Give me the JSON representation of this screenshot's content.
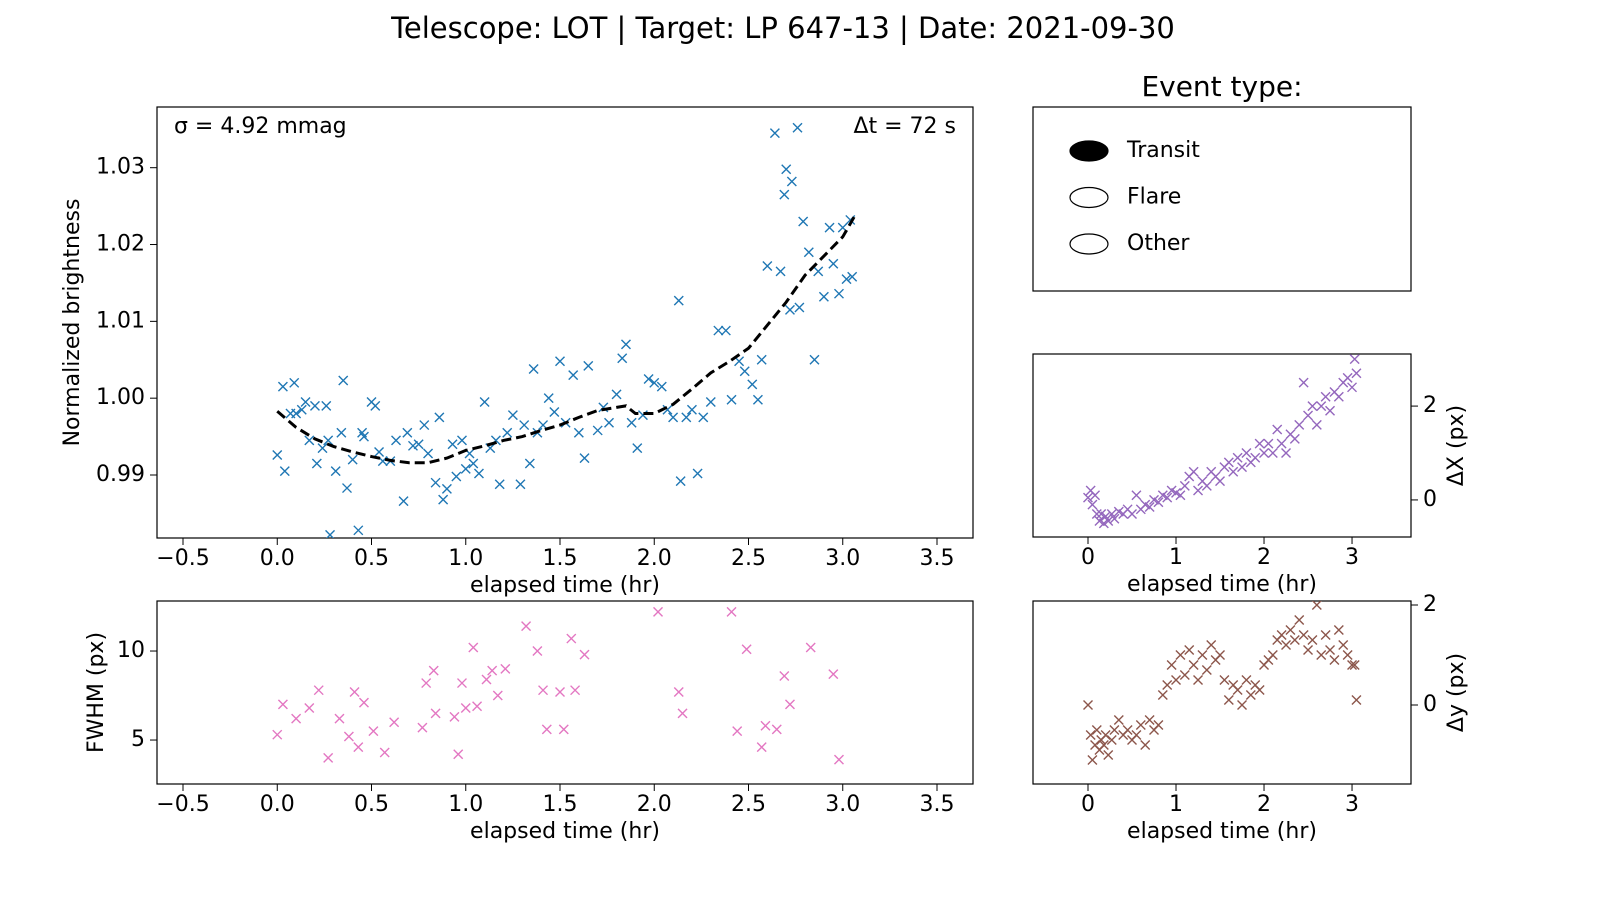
{
  "title": "Telescope: LOT  |  Target: LP 647-13  |  Date: 2021-09-30",
  "legend": {
    "title": "Event type:",
    "items": [
      "Transit",
      "Flare",
      "Other"
    ],
    "selected": 0
  },
  "chart_data": [
    {
      "type": "scatter",
      "xlabel": "elapsed time (hr)",
      "ylabel": "Normalized brightness",
      "yaxis_side": "left",
      "annotations": [
        {
          "text": "σ = 4.92 mmag",
          "corner": "upper left"
        },
        {
          "text": "Δt = 72 s",
          "corner": "upper right"
        }
      ],
      "xlim": [
        -0.638,
        3.691
      ],
      "ylim": [
        0.9818,
        1.0379
      ],
      "xticks": [
        {
          "value": -0.5,
          "label": "−0.5"
        },
        {
          "value": 0,
          "label": "0.0"
        },
        0.5,
        {
          "value": 1,
          "label": "1.0"
        },
        1.5,
        {
          "value": 2,
          "label": "2.0"
        },
        2.5,
        {
          "value": 3,
          "label": "3.0"
        },
        3.5
      ],
      "yticks": [
        0.99,
        {
          "value": 1,
          "label": "1.00"
        },
        1.01,
        1.02,
        1.03
      ],
      "series": [
        {
          "type": "scatter",
          "marker": "x",
          "color": "#1f77b4",
          "x": [
            0.0,
            0.03,
            0.04,
            0.07,
            0.09,
            0.1,
            0.13,
            0.15,
            0.17,
            0.2,
            0.21,
            0.24,
            0.26,
            0.27,
            0.28,
            0.31,
            0.34,
            0.35,
            0.37,
            0.4,
            0.43,
            0.45,
            0.46,
            0.5,
            0.52,
            0.54,
            0.56,
            0.6,
            0.63,
            0.67,
            0.69,
            0.72,
            0.75,
            0.78,
            0.8,
            0.84,
            0.86,
            0.88,
            0.9,
            0.93,
            0.95,
            0.98,
            1.0,
            1.02,
            1.04,
            1.07,
            1.1,
            1.13,
            1.16,
            1.18,
            1.22,
            1.25,
            1.29,
            1.31,
            1.34,
            1.36,
            1.38,
            1.41,
            1.44,
            1.47,
            1.5,
            1.53,
            1.57,
            1.6,
            1.63,
            1.65,
            1.7,
            1.73,
            1.76,
            1.8,
            1.83,
            1.85,
            1.88,
            1.91,
            1.94,
            1.97,
            2.0,
            2.04,
            2.07,
            2.1,
            2.13,
            2.14,
            2.17,
            2.2,
            2.23,
            2.26,
            2.3,
            2.34,
            2.38,
            2.41,
            2.45,
            2.48,
            2.52,
            2.55,
            2.57,
            2.6,
            2.64,
            2.67,
            2.69,
            2.7,
            2.72,
            2.73,
            2.76,
            2.77,
            2.79,
            2.82,
            2.85,
            2.87,
            2.9,
            2.93,
            2.95,
            2.98,
            3.0,
            3.02,
            3.04,
            3.05
          ],
          "values": [
            0.9926,
            1.0015,
            0.9905,
            0.998,
            1.002,
            0.998,
            0.9985,
            0.9995,
            0.9945,
            0.999,
            0.9915,
            0.9935,
            0.999,
            0.9945,
            0.9822,
            0.9905,
            0.9955,
            1.0023,
            0.9883,
            0.992,
            0.9828,
            0.9955,
            0.995,
            0.9995,
            0.999,
            0.993,
            0.9918,
            0.9918,
            0.9945,
            0.9866,
            0.9955,
            0.9938,
            0.994,
            0.9965,
            0.9928,
            0.989,
            0.9975,
            0.9868,
            0.9882,
            0.994,
            0.9898,
            0.9945,
            0.9908,
            0.9928,
            0.9915,
            0.9902,
            0.9995,
            0.9935,
            0.9945,
            0.9888,
            0.9955,
            0.9978,
            0.9888,
            0.9965,
            0.9915,
            1.0038,
            0.9955,
            0.9965,
            1.0,
            0.9982,
            1.0048,
            0.9968,
            1.003,
            0.9955,
            0.9922,
            1.0042,
            0.9958,
            0.9988,
            0.9968,
            1.0005,
            1.0052,
            1.007,
            0.9968,
            0.9935,
            0.9978,
            1.0025,
            1.002,
            1.0015,
            0.9985,
            0.9975,
            1.0127,
            0.9892,
            0.9975,
            0.9985,
            0.9902,
            0.9975,
            0.9995,
            1.0088,
            1.0088,
            0.9998,
            1.0048,
            1.0035,
            1.0018,
            0.9998,
            1.005,
            1.0172,
            1.0345,
            1.0165,
            1.0265,
            1.0298,
            1.0115,
            1.0282,
            1.0352,
            1.0118,
            1.023,
            1.019,
            1.005,
            1.0165,
            1.0132,
            1.0222,
            1.0175,
            1.0136,
            1.0222,
            1.0155,
            1.0232,
            1.0158
          ]
        },
        {
          "type": "line",
          "dashed": true,
          "color": "#000000",
          "x": [
            0,
            0.1,
            0.2,
            0.3,
            0.4,
            0.5,
            0.6,
            0.7,
            0.8,
            0.9,
            1.0,
            1.1,
            1.2,
            1.3,
            1.4,
            1.5,
            1.6,
            1.7,
            1.8,
            1.85,
            1.9,
            2.0,
            2.1,
            2.2,
            2.3,
            2.4,
            2.5,
            2.6,
            2.7,
            2.8,
            2.9,
            3.0,
            3.07
          ],
          "values": [
            0.9983,
            0.9962,
            0.9947,
            0.9937,
            0.993,
            0.9924,
            0.9919,
            0.9916,
            0.9916,
            0.9922,
            0.9932,
            0.9938,
            0.9945,
            0.995,
            0.9958,
            0.9965,
            0.9975,
            0.9984,
            0.9988,
            0.999,
            0.998,
            0.998,
            0.9992,
            1.0012,
            1.0033,
            1.0048,
            1.0065,
            1.0095,
            1.0125,
            1.016,
            1.0185,
            1.021,
            1.024
          ]
        }
      ]
    },
    {
      "type": "scatter",
      "xlabel": "elapsed time (hr)",
      "ylabel": "FWHM (px)",
      "yaxis_side": "left",
      "xlim": [
        -0.638,
        3.691
      ],
      "ylim": [
        2.53,
        12.81
      ],
      "xticks": [
        {
          "value": -0.5,
          "label": "−0.5"
        },
        {
          "value": 0,
          "label": "0.0"
        },
        0.5,
        {
          "value": 1,
          "label": "1.0"
        },
        1.5,
        {
          "value": 2,
          "label": "2.0"
        },
        2.5,
        {
          "value": 3,
          "label": "3.0"
        },
        3.5
      ],
      "yticks": [
        5,
        10
      ],
      "series": [
        {
          "type": "scatter",
          "marker": "x",
          "color": "#e377c2",
          "x": [
            0.0,
            0.03,
            0.1,
            0.17,
            0.22,
            0.27,
            0.33,
            0.38,
            0.41,
            0.43,
            0.46,
            0.51,
            0.57,
            0.62,
            0.77,
            0.79,
            0.83,
            0.84,
            0.94,
            0.96,
            0.98,
            1.0,
            1.04,
            1.06,
            1.11,
            1.14,
            1.17,
            1.21,
            1.32,
            1.38,
            1.41,
            1.43,
            1.5,
            1.52,
            1.56,
            1.58,
            1.63,
            2.02,
            2.13,
            2.15,
            2.41,
            2.44,
            2.49,
            2.57,
            2.59,
            2.65,
            2.69,
            2.72,
            2.83,
            2.95,
            2.98
          ],
          "values": [
            5.3,
            7.0,
            6.2,
            6.8,
            7.8,
            4.0,
            6.2,
            5.2,
            7.7,
            4.6,
            7.1,
            5.5,
            4.3,
            6.0,
            5.7,
            8.2,
            8.9,
            6.5,
            6.3,
            4.2,
            8.2,
            6.8,
            10.2,
            6.9,
            8.4,
            8.9,
            7.5,
            9.0,
            11.4,
            10.0,
            7.8,
            5.6,
            7.7,
            5.6,
            10.7,
            7.8,
            9.8,
            12.2,
            7.7,
            6.5,
            12.2,
            5.5,
            10.1,
            4.6,
            5.8,
            5.6,
            8.6,
            7.0,
            10.2,
            8.7,
            3.9
          ]
        }
      ]
    },
    {
      "type": "scatter",
      "xlabel": "elapsed time (hr)",
      "ylabel": "ΔX (px)",
      "yaxis_side": "right",
      "xlim": [
        -0.625,
        3.67
      ],
      "ylim": [
        -0.79,
        3.11
      ],
      "xticks": [
        0,
        1,
        2,
        3
      ],
      "yticks": [
        0,
        2
      ],
      "series": [
        {
          "type": "scatter",
          "marker": "x",
          "color": "#9467bd",
          "x": [
            0,
            0.03,
            0.05,
            0.08,
            0.1,
            0.13,
            0.15,
            0.18,
            0.2,
            0.23,
            0.27,
            0.3,
            0.35,
            0.4,
            0.45,
            0.5,
            0.55,
            0.6,
            0.65,
            0.7,
            0.75,
            0.8,
            0.85,
            0.9,
            0.95,
            1.0,
            1.05,
            1.1,
            1.15,
            1.2,
            1.25,
            1.3,
            1.35,
            1.4,
            1.45,
            1.5,
            1.55,
            1.6,
            1.65,
            1.7,
            1.75,
            1.8,
            1.85,
            1.9,
            1.95,
            2.0,
            2.05,
            2.1,
            2.15,
            2.2,
            2.25,
            2.3,
            2.35,
            2.4,
            2.45,
            2.5,
            2.55,
            2.6,
            2.65,
            2.7,
            2.75,
            2.8,
            2.85,
            2.9,
            2.95,
            3.0,
            3.03,
            3.05
          ],
          "values": [
            0.05,
            0.2,
            -0.1,
            0.1,
            -0.3,
            -0.45,
            -0.3,
            -0.5,
            -0.35,
            -0.45,
            -0.3,
            -0.4,
            -0.25,
            -0.3,
            -0.2,
            -0.3,
            0.1,
            -0.2,
            -0.1,
            -0.15,
            0.0,
            -0.05,
            0.1,
            0.05,
            0.2,
            0.15,
            0.1,
            0.3,
            0.5,
            0.6,
            0.2,
            0.4,
            0.3,
            0.6,
            0.5,
            0.4,
            0.7,
            0.8,
            0.6,
            0.9,
            0.7,
            1.0,
            0.8,
            0.9,
            1.2,
            1.0,
            1.2,
            1.0,
            1.5,
            1.2,
            1.0,
            1.4,
            1.3,
            1.6,
            2.5,
            1.8,
            2.0,
            1.6,
            2.0,
            2.2,
            1.9,
            2.3,
            2.2,
            2.5,
            2.6,
            2.4,
            3.0,
            2.7
          ]
        }
      ]
    },
    {
      "type": "scatter",
      "xlabel": "elapsed time (hr)",
      "ylabel": "Δy (px)",
      "yaxis_side": "right",
      "xlim": [
        -0.625,
        3.67
      ],
      "ylim": [
        -1.58,
        2.08
      ],
      "xticks": [
        0,
        1,
        2,
        3
      ],
      "yticks": [
        0,
        2
      ],
      "series": [
        {
          "type": "scatter",
          "marker": "x",
          "color": "#8c564b",
          "x": [
            0,
            0.03,
            0.05,
            0.08,
            0.1,
            0.13,
            0.15,
            0.18,
            0.2,
            0.23,
            0.27,
            0.3,
            0.35,
            0.4,
            0.45,
            0.5,
            0.55,
            0.6,
            0.65,
            0.7,
            0.75,
            0.8,
            0.85,
            0.9,
            0.95,
            1.0,
            1.05,
            1.1,
            1.15,
            1.2,
            1.25,
            1.3,
            1.35,
            1.4,
            1.45,
            1.5,
            1.55,
            1.6,
            1.65,
            1.7,
            1.75,
            1.8,
            1.85,
            1.9,
            1.95,
            2.0,
            2.05,
            2.1,
            2.15,
            2.2,
            2.25,
            2.3,
            2.35,
            2.4,
            2.45,
            2.5,
            2.55,
            2.6,
            2.65,
            2.7,
            2.75,
            2.8,
            2.85,
            2.9,
            2.95,
            3.0,
            3.03,
            3.05
          ],
          "values": [
            0,
            -0.6,
            -1.1,
            -0.8,
            -0.5,
            -0.9,
            -0.7,
            -0.8,
            -0.6,
            -1.0,
            -0.7,
            -0.5,
            -0.3,
            -0.6,
            -0.5,
            -0.7,
            -0.6,
            -0.4,
            -0.8,
            -0.3,
            -0.5,
            -0.4,
            0.2,
            0.4,
            0.8,
            0.5,
            1.0,
            0.6,
            1.1,
            0.8,
            0.5,
            1.0,
            0.7,
            1.2,
            0.9,
            1.0,
            0.5,
            0.1,
            0.4,
            0.3,
            0.0,
            0.5,
            0.2,
            0.4,
            0.3,
            0.8,
            0.9,
            1.0,
            1.3,
            1.4,
            1.2,
            1.5,
            1.3,
            1.7,
            1.4,
            1.1,
            1.3,
            2.0,
            1.0,
            1.4,
            1.1,
            0.9,
            1.5,
            1.2,
            1.0,
            0.8,
            0.8,
            0.1
          ]
        }
      ]
    }
  ]
}
